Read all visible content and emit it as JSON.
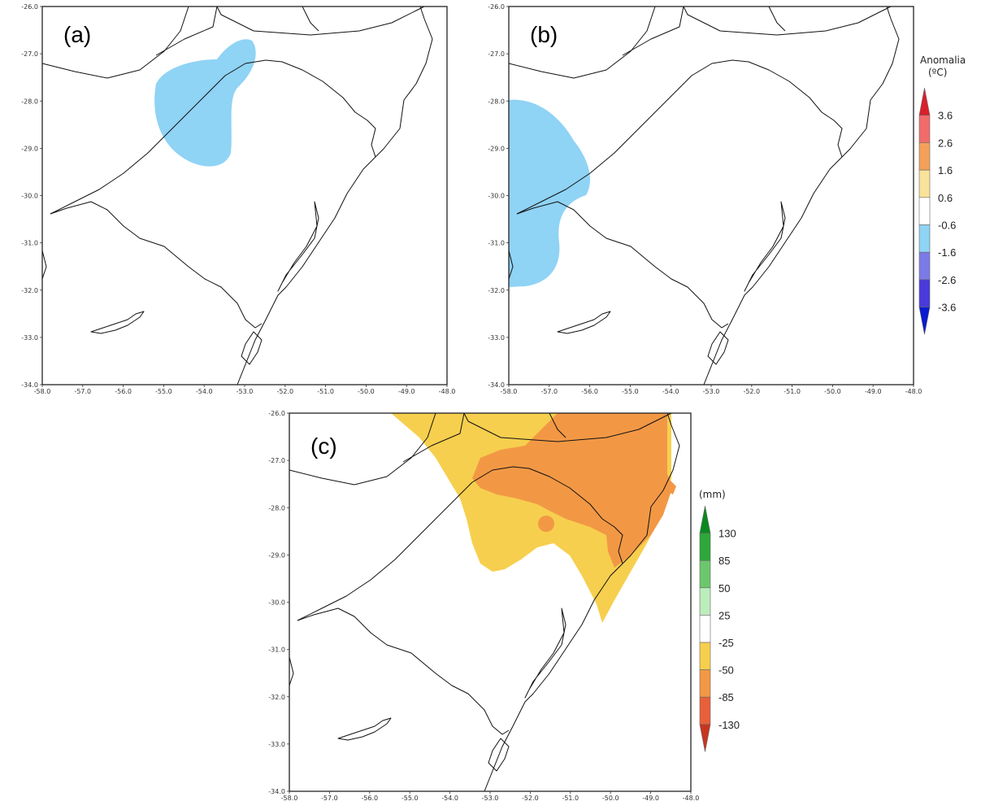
{
  "panels": [
    {
      "label": "(a)",
      "x_ticks": [
        "-58.0",
        "-57.0",
        "-56.0",
        "-55.0",
        "-54.0",
        "-53.0",
        "-52.0",
        "-51.0",
        "-50.0",
        "-49.0",
        "-48.0"
      ],
      "y_ticks": [
        "-26.0",
        "-27.0",
        "-28.0",
        "-29.0",
        "-30.0",
        "-31.0",
        "-32.0",
        "-33.0",
        "-34.0"
      ]
    },
    {
      "label": "(b)",
      "x_ticks": [
        "-58.0",
        "-57.0",
        "-56.0",
        "-55.0",
        "-54.0",
        "-53.0",
        "-52.0",
        "-51.0",
        "-50.0",
        "-49.0",
        "-48.0"
      ],
      "y_ticks": [
        "-26.0",
        "-27.0",
        "-28.0",
        "-29.0",
        "-30.0",
        "-31.0",
        "-32.0",
        "-33.0",
        "-34.0"
      ]
    },
    {
      "label": "(c)",
      "x_ticks": [
        "-58.0",
        "-57.0",
        "-56.0",
        "-55.0",
        "-54.0",
        "-53.0",
        "-52.0",
        "-51.0",
        "-50.0",
        "-49.0",
        "-48.0"
      ],
      "y_ticks": [
        "-26.0",
        "-27.0",
        "-28.0",
        "-29.0",
        "-30.0",
        "-31.0",
        "-32.0",
        "-33.0",
        "-34.0"
      ]
    }
  ],
  "temp_legend": {
    "title_line1": "Anomalia",
    "title_line2": "(ºC)",
    "values": [
      "3.6",
      "2.6",
      "1.6",
      "0.6",
      "-0.6",
      "-1.6",
      "-2.6",
      "-3.6"
    ],
    "colors": [
      "#d9202a",
      "#f26b6b",
      "#f5a05a",
      "#f9e29a",
      "#ffffff",
      "#8fd3f5",
      "#7b7be8",
      "#4a3adb",
      "#0a1ad0"
    ]
  },
  "precip_legend": {
    "title": "(mm)",
    "values": [
      "130",
      "85",
      "50",
      "25",
      "-25",
      "-50",
      "-85",
      "-130"
    ],
    "colors": [
      "#0a8a1e",
      "#2ea83a",
      "#6cc76c",
      "#bdecbd",
      "#ffffff",
      "#f7cf4e",
      "#f29845",
      "#e8603a",
      "#c8351f"
    ]
  },
  "colors": {
    "cold_anomaly": "#8fd3f5",
    "dry_light": "#f7cf4e",
    "dry_medium": "#f29845"
  }
}
